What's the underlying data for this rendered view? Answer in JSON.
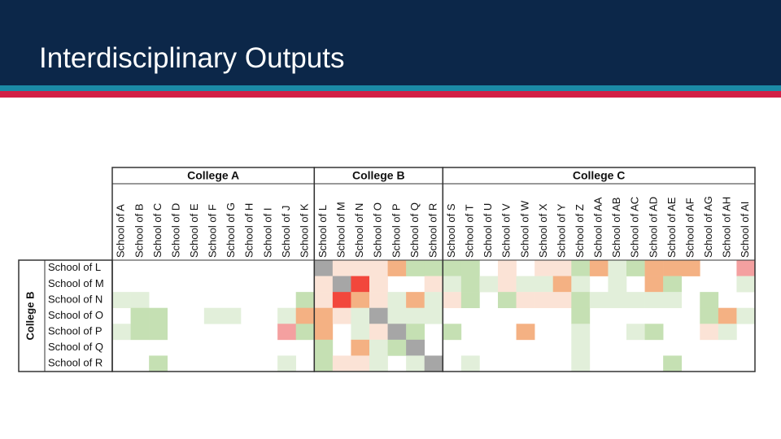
{
  "header": {
    "title": "Interdisciplinary Outputs"
  },
  "matrix": {
    "column_groups": [
      {
        "label": "College A",
        "columns": [
          "School of A",
          "School of B",
          "School of C",
          "School of D",
          "School of E",
          "School of F",
          "School of G",
          "School of H",
          "School of I",
          "School of J",
          "School of K"
        ]
      },
      {
        "label": "College B",
        "columns": [
          "School of L",
          "School of M",
          "School of N",
          "School of O",
          "School of P",
          "School of Q",
          "School of R"
        ]
      },
      {
        "label": "College C",
        "columns": [
          "School of S",
          "School of T",
          "School of U",
          "School of V",
          "School of W",
          "School of X",
          "School of Y",
          "School of Z",
          "School of AA",
          "School of AB",
          "School of AC",
          "School of AD",
          "School of AE",
          "School of AF",
          "School of AG",
          "School of AH",
          "School of AI"
        ]
      }
    ],
    "row_group": {
      "label": "College B",
      "rows": [
        "School of L",
        "School of M",
        "School of N",
        "School of O",
        "School of P",
        "School of Q",
        "School of R"
      ]
    },
    "cells": [
      [
        null,
        null,
        null,
        null,
        null,
        null,
        null,
        null,
        null,
        null,
        null,
        "#a6a6a6",
        "#fbe3d6",
        "#fbe3d6",
        "#fbe3d6",
        "#f4b183",
        "#c5e0b3",
        "#c5e0b3",
        "#c5e0b3",
        "#c5e0b3",
        null,
        "#fbe3d6",
        null,
        "#fbe3d6",
        "#fbe3d6",
        "#c5e0b3",
        "#f4b183",
        "#e2efda",
        "#c5e0b3",
        "#f4b183",
        "#f4b183",
        "#f4b183",
        null,
        null,
        "#f4a0a0"
      ],
      [
        null,
        null,
        null,
        null,
        null,
        null,
        null,
        null,
        null,
        null,
        null,
        "#fbe3d6",
        "#a6a6a6",
        "#f2473c",
        "#fbe3d6",
        null,
        null,
        "#fbe3d6",
        "#e2efda",
        "#c5e0b3",
        "#e2efda",
        "#fbe3d6",
        "#e2efda",
        "#e2efda",
        "#f4b183",
        "#e2efda",
        null,
        "#e2efda",
        null,
        "#f4b183",
        "#c5e0b3",
        null,
        null,
        null,
        "#e2efda"
      ],
      [
        "#e2efda",
        "#e2efda",
        null,
        null,
        null,
        null,
        null,
        null,
        null,
        null,
        "#c5e0b3",
        "#fbe3d6",
        "#f2473c",
        "#f4b183",
        "#fbe3d6",
        "#e2efda",
        "#f4b183",
        "#e2efda",
        "#fbe3d6",
        "#c5e0b3",
        null,
        "#c5e0b3",
        "#fbe3d6",
        "#fbe3d6",
        "#fbe3d6",
        "#c5e0b3",
        "#e2efda",
        "#e2efda",
        "#e2efda",
        "#e2efda",
        "#e2efda",
        null,
        "#c5e0b3",
        null,
        null
      ],
      [
        null,
        "#c5e0b3",
        "#c5e0b3",
        null,
        null,
        "#e2efda",
        "#e2efda",
        null,
        null,
        "#e2efda",
        "#f4b183",
        "#f4b183",
        "#fbe3d6",
        "#e2efda",
        "#a6a6a6",
        "#e2efda",
        "#e2efda",
        "#e2efda",
        null,
        null,
        null,
        null,
        null,
        null,
        null,
        "#c5e0b3",
        null,
        null,
        null,
        null,
        null,
        null,
        "#c5e0b3",
        "#f4b183",
        "#e2efda"
      ],
      [
        "#e2efda",
        "#c5e0b3",
        "#c5e0b3",
        null,
        null,
        null,
        null,
        null,
        null,
        "#f4a0a0",
        "#c5e0b3",
        "#f4b183",
        null,
        "#e2efda",
        "#fbe3d6",
        "#a6a6a6",
        "#c5e0b3",
        null,
        "#c5e0b3",
        null,
        null,
        null,
        "#f4b183",
        null,
        null,
        "#e2efda",
        null,
        null,
        "#e2efda",
        "#c5e0b3",
        null,
        null,
        "#fbe3d6",
        "#e2efda",
        null
      ],
      [
        null,
        null,
        null,
        null,
        null,
        null,
        null,
        null,
        null,
        null,
        null,
        "#c5e0b3",
        null,
        "#f4b183",
        "#e2efda",
        "#c5e0b3",
        "#a6a6a6",
        null,
        null,
        null,
        null,
        null,
        null,
        null,
        null,
        "#e2efda",
        null,
        null,
        null,
        null,
        null,
        null,
        null,
        null,
        null
      ],
      [
        null,
        null,
        "#c5e0b3",
        null,
        null,
        null,
        null,
        null,
        null,
        "#e2efda",
        null,
        "#c5e0b3",
        "#fbe3d6",
        "#fbe3d6",
        "#e2efda",
        null,
        "#e2efda",
        "#a6a6a6",
        null,
        "#e2efda",
        null,
        null,
        null,
        null,
        null,
        "#e2efda",
        null,
        null,
        null,
        null,
        "#c5e0b3",
        null,
        null,
        null,
        null
      ]
    ]
  }
}
